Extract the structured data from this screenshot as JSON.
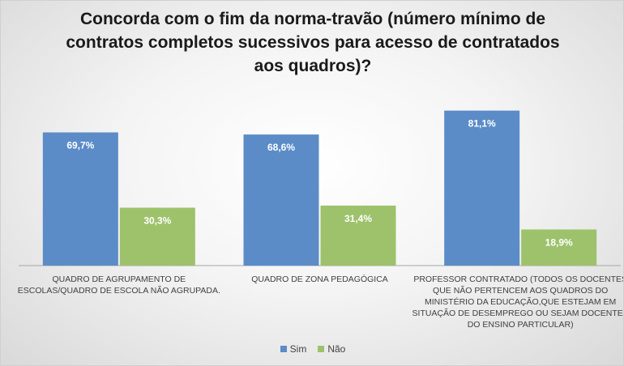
{
  "chart_data": {
    "type": "bar",
    "title": "Concorda com o fim da norma-travão (número mínimo de contratos completos sucessivos para acesso de contratados aos quadros)?",
    "categories": [
      [
        "QUADRO DE AGRUPAMENTO DE",
        "ESCOLAS/QUADRO DE ESCOLA NÃO AGRUPADA."
      ],
      [
        "QUADRO DE ZONA PEDAGÓGICA"
      ],
      [
        "PROFESSOR CONTRATADO (TODOS OS DOCENTES",
        "QUE NÃO PERTENCEM AOS QUADROS DO",
        "MINISTÉRIO DA EDUCAÇÃO,QUE ESTEJAM EM",
        "SITUAÇÃO DE DESEMPREGO OU SEJAM DOCENTES",
        "DO ENSINO PARTICULAR)"
      ]
    ],
    "series": [
      {
        "name": "Sim",
        "color": "#5B8CC8",
        "values": [
          69.7,
          68.6,
          81.1
        ],
        "labels": [
          "69,7%",
          "68,6%",
          "81,1%"
        ]
      },
      {
        "name": "Não",
        "color": "#9DC26B",
        "values": [
          30.3,
          31.4,
          18.9
        ],
        "labels": [
          "30,3%",
          "31,4%",
          "18,9%"
        ]
      }
    ],
    "ylim": [
      0,
      100
    ],
    "grid": false,
    "legend_position": "bottom"
  }
}
